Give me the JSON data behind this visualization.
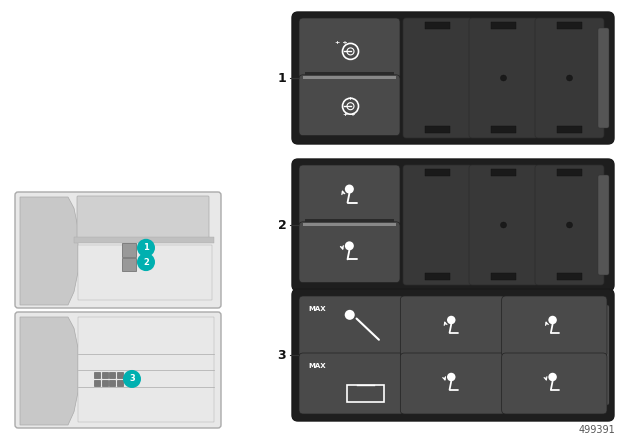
{
  "background_color": "#ffffff",
  "figure_number": "499391",
  "panel_bg": "#3a3a3a",
  "panel_mid": "#444444",
  "panel_dark": "#2a2a2a",
  "panel_darker": "#1e1e1e",
  "slot_color": "#383838",
  "slot_dark": "#2c2c2c",
  "btn_light": "#4a4a4a",
  "btn_dark": "#383838",
  "sym": "#ffffff",
  "teal": "#00b0b0",
  "num_color": "#ffffff",
  "leader_color": "#333333",
  "border_color": "#1a1a1a",
  "car_fill": "#e8e8e8",
  "car_line": "#aaaaaa",
  "car_dark": "#c8c8c8",
  "car_shadow": "#bbbbbb"
}
